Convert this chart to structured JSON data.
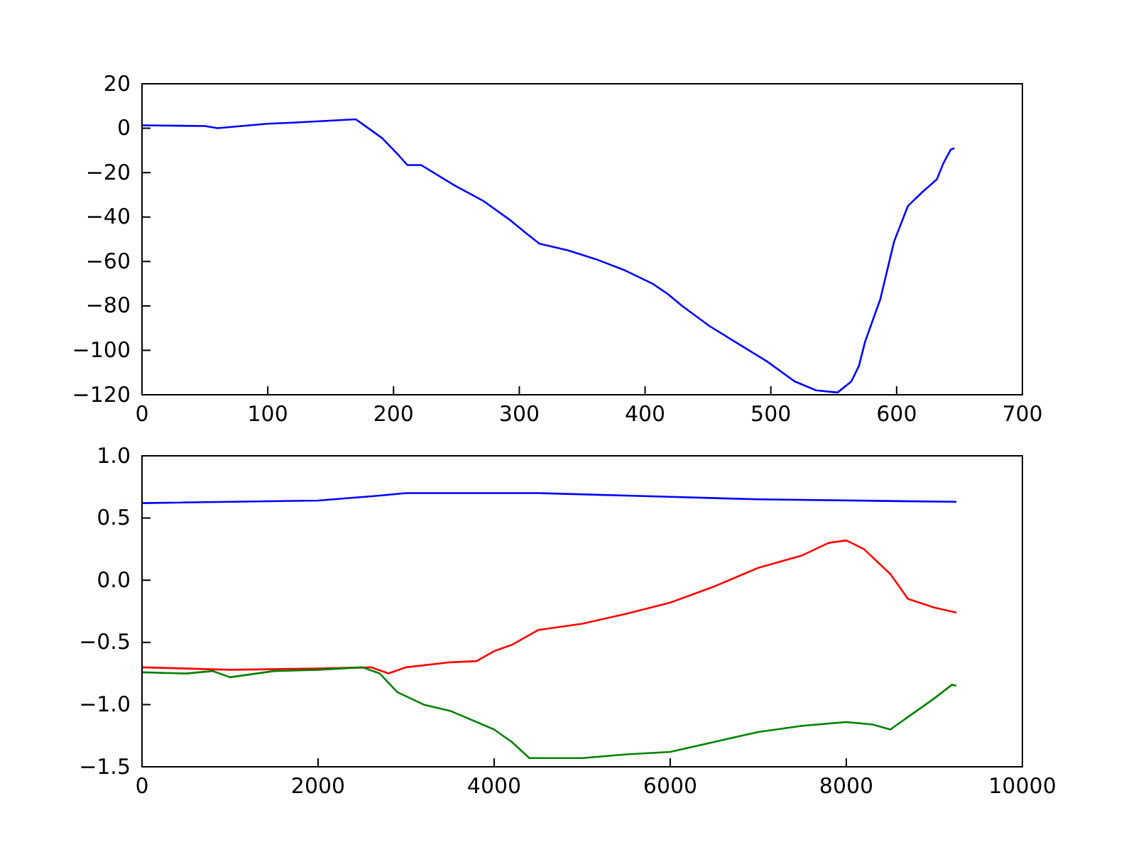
{
  "chart_data": [
    {
      "type": "line",
      "xlim": [
        0,
        700
      ],
      "ylim": [
        -120,
        20
      ],
      "xticks": [
        0,
        100,
        200,
        300,
        400,
        500,
        600,
        700
      ],
      "yticks": [
        -120,
        -100,
        -80,
        -60,
        -40,
        -20,
        0,
        20
      ],
      "grid": false,
      "series": [
        {
          "color": "#0000ff",
          "x": [
            0,
            50,
            60,
            100,
            120,
            170,
            191,
            203,
            211,
            222,
            229,
            248,
            271,
            293,
            307,
            316,
            339,
            361,
            384,
            406,
            418,
            429,
            451,
            474,
            497,
            519,
            536,
            553,
            564,
            570,
            575,
            587,
            598,
            609,
            620,
            632,
            637,
            643,
            646
          ],
          "values": [
            1.3,
            1,
            0,
            2,
            2.5,
            4,
            -4.5,
            -11.5,
            -16.6,
            -16.6,
            -19,
            -25.6,
            -32.6,
            -41.5,
            -48,
            -52,
            -55,
            -59,
            -64,
            -70,
            -74.6,
            -79.8,
            -89,
            -97,
            -105,
            -114,
            -118,
            -119,
            -114,
            -107,
            -96,
            -77,
            -51,
            -35,
            -29,
            -23,
            -16,
            -9.6,
            -9
          ]
        }
      ]
    },
    {
      "type": "line",
      "xlim": [
        0,
        10000
      ],
      "ylim": [
        -1.5,
        1
      ],
      "xticks": [
        0,
        2000,
        4000,
        6000,
        8000,
        10000
      ],
      "yticks": [
        -1.5,
        {
          "value": -1,
          "label": "−1.0"
        },
        -0.5,
        {
          "value": 0,
          "label": "0.0"
        },
        0.5,
        {
          "value": 1,
          "label": "1.0"
        }
      ],
      "grid": false,
      "series": [
        {
          "color": "#0000ff",
          "x": [
            0,
            2000,
            2700,
            3000,
            4500,
            6000,
            7000,
            9250
          ],
          "values": [
            0.62,
            0.64,
            0.68,
            0.7,
            0.7,
            0.67,
            0.65,
            0.63
          ]
        },
        {
          "color": "#ff0000",
          "x": [
            0,
            1000,
            2000,
            2600,
            2800,
            3000,
            3500,
            3800,
            4000,
            4200,
            4500,
            5000,
            5500,
            6000,
            6500,
            7000,
            7500,
            7800,
            8000,
            8200,
            8500,
            8700,
            9000,
            9250
          ],
          "values": [
            -0.7,
            -0.72,
            -0.71,
            -0.7,
            -0.75,
            -0.7,
            -0.66,
            -0.65,
            -0.57,
            -0.52,
            -0.4,
            -0.35,
            -0.27,
            -0.18,
            -0.05,
            0.1,
            0.2,
            0.3,
            0.32,
            0.25,
            0.05,
            -0.15,
            -0.22,
            -0.26
          ]
        },
        {
          "color": "#008000",
          "x": [
            0,
            500,
            800,
            1000,
            1500,
            2000,
            2500,
            2700,
            2900,
            3200,
            3500,
            4000,
            4200,
            4400,
            5000,
            5500,
            6000,
            6500,
            7000,
            7500,
            8000,
            8300,
            8500,
            8700,
            9000,
            9200,
            9250
          ],
          "values": [
            -0.74,
            -0.75,
            -0.73,
            -0.78,
            -0.73,
            -0.72,
            -0.7,
            -0.75,
            -0.9,
            -1,
            -1.05,
            -1.2,
            -1.3,
            -1.43,
            -1.43,
            -1.4,
            -1.38,
            -1.3,
            -1.22,
            -1.17,
            -1.14,
            -1.16,
            -1.2,
            -1.1,
            -0.95,
            -0.84,
            -0.85
          ]
        }
      ]
    }
  ]
}
